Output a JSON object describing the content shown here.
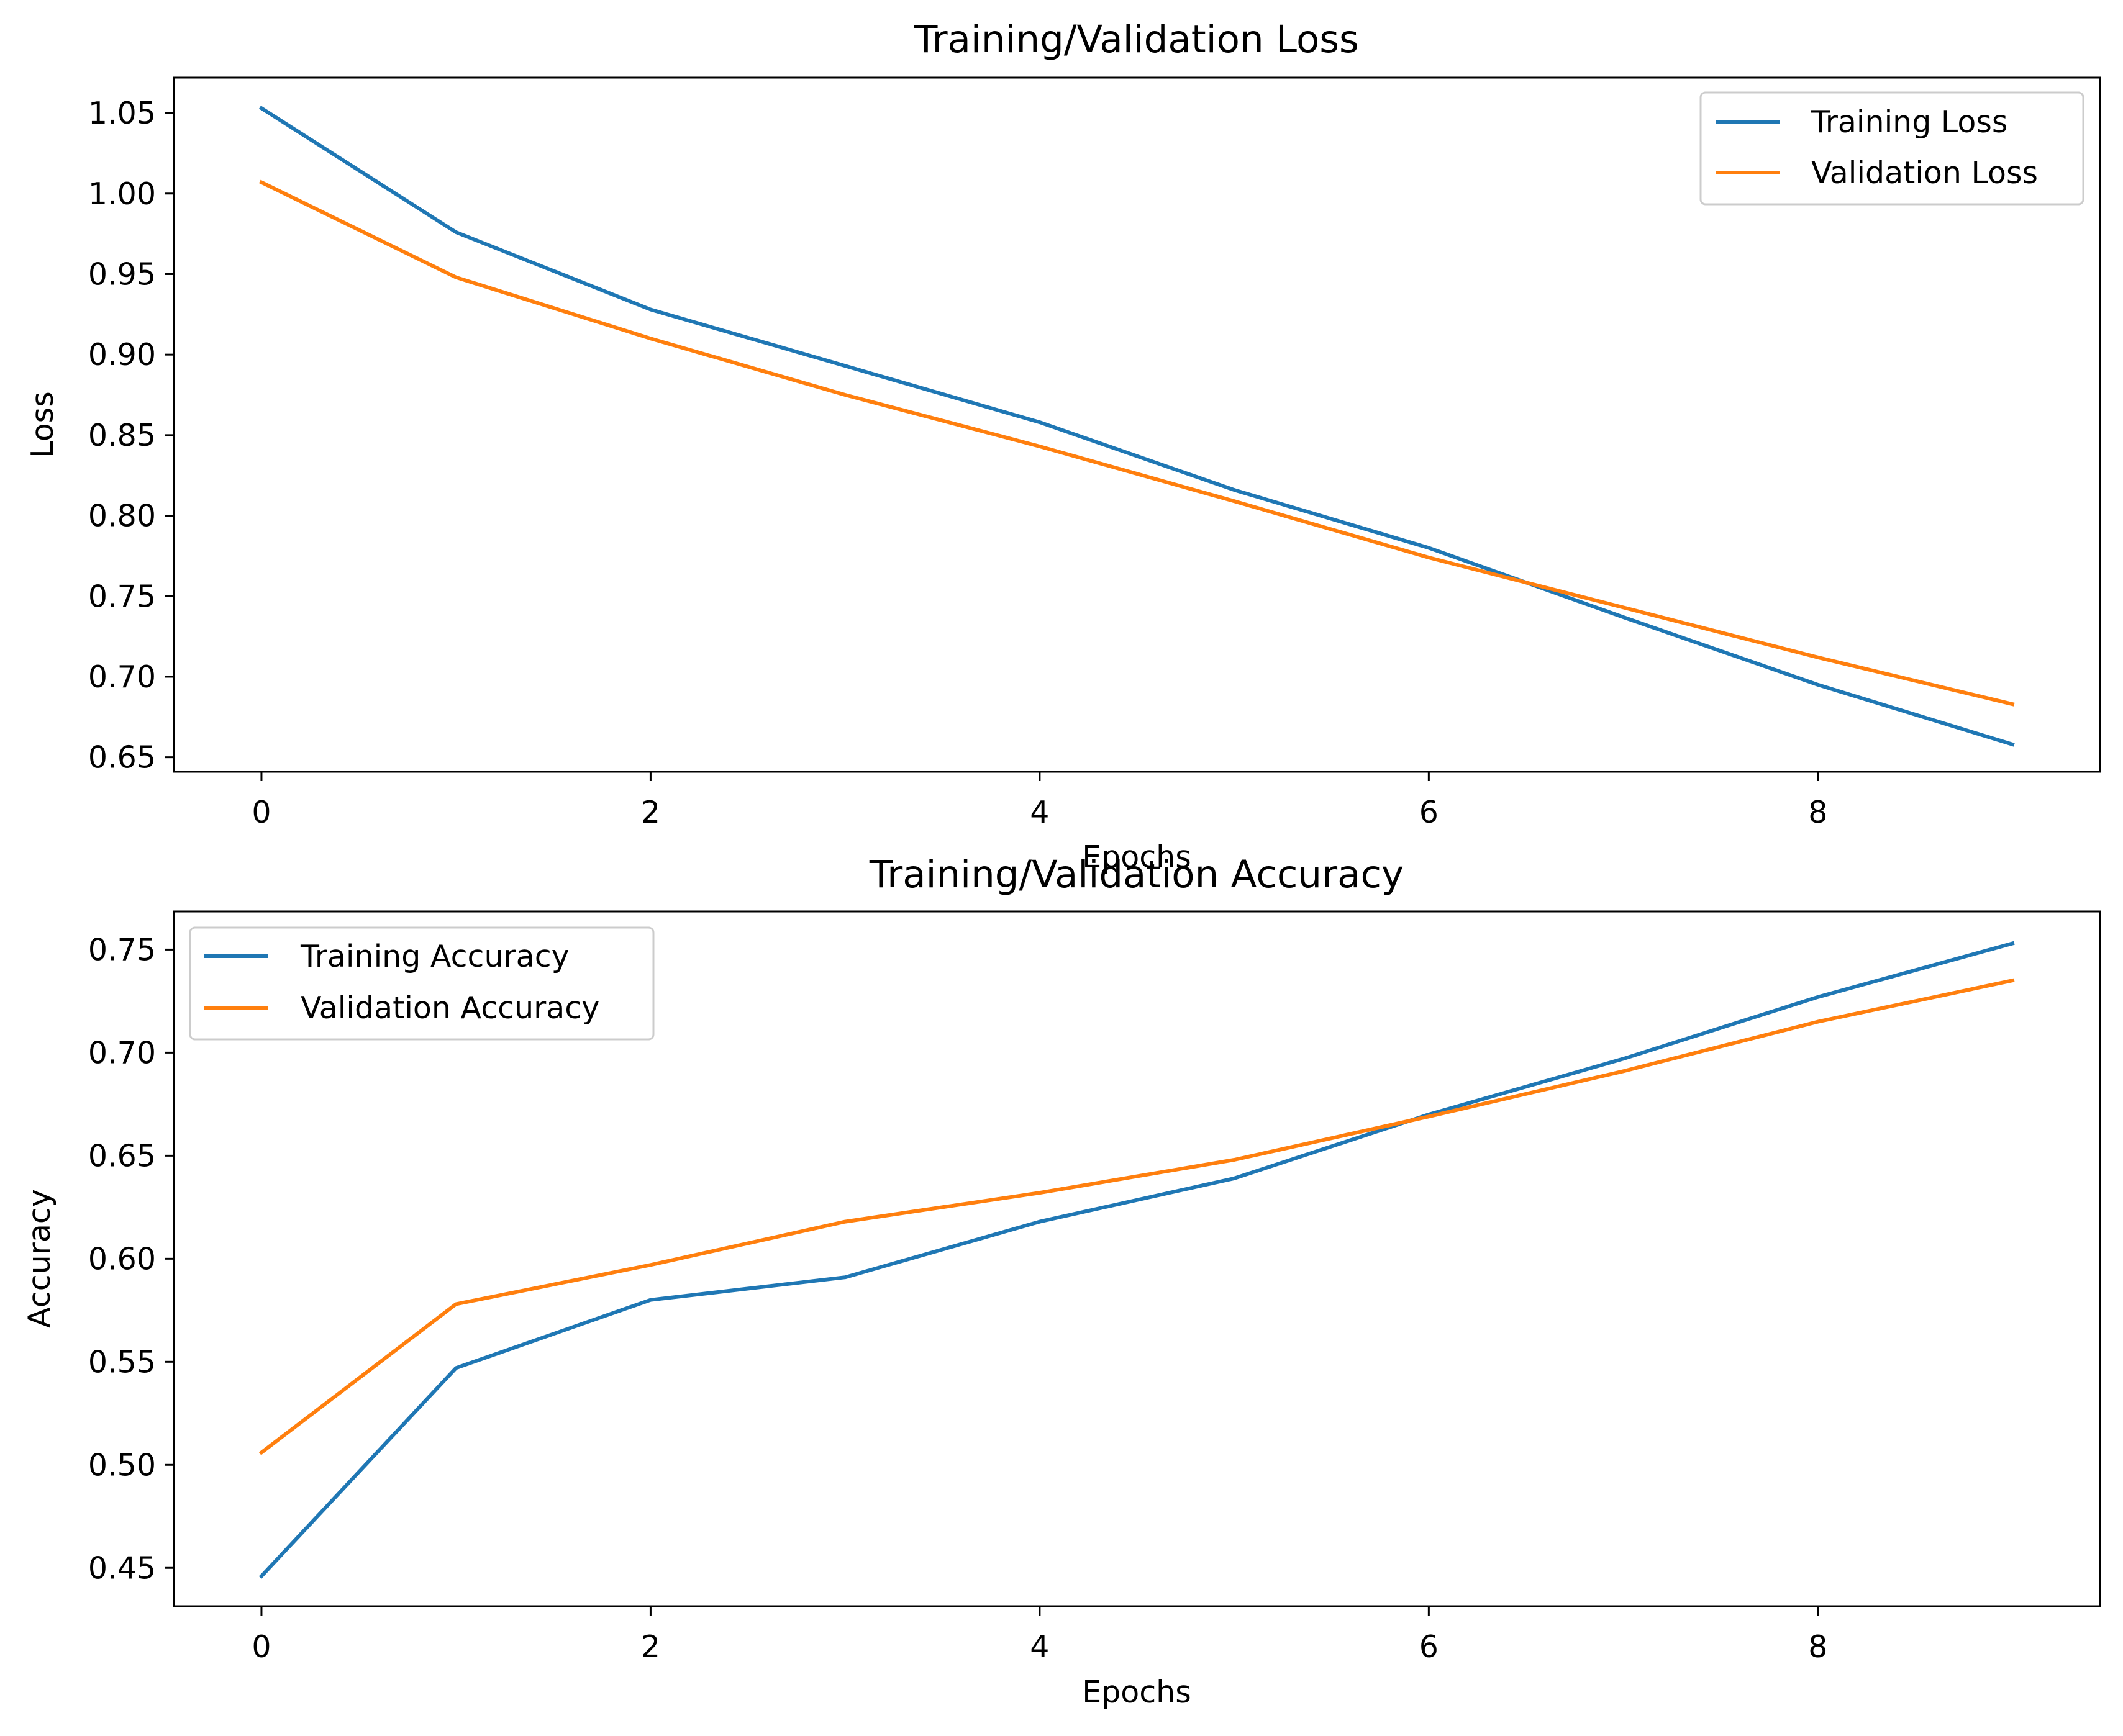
{
  "colors": {
    "series_1": "#1f77b4",
    "series_2": "#ff7f0e",
    "axes": "#000000",
    "legend_border": "#cccccc",
    "background": "#ffffff"
  },
  "chart_data": [
    {
      "type": "line",
      "title": "Training/Validation Loss",
      "xlabel": "Epochs",
      "ylabel": "Loss",
      "x": [
        0,
        1,
        2,
        3,
        4,
        5,
        6,
        7,
        8,
        9
      ],
      "xlim": [
        -0.45,
        9.45
      ],
      "ylim": [
        0.641,
        1.072
      ],
      "xticks": [
        0,
        2,
        4,
        6,
        8
      ],
      "xtick_labels": [
        "0",
        "2",
        "4",
        "6",
        "8"
      ],
      "yticks": [
        0.65,
        0.7,
        0.75,
        0.8,
        0.85,
        0.9,
        0.95,
        1.0,
        1.05
      ],
      "ytick_labels": [
        "0.65",
        "0.70",
        "0.75",
        "0.80",
        "0.85",
        "0.90",
        "0.95",
        "1.00",
        "1.05"
      ],
      "grid": false,
      "legend_position": "upper right",
      "series": [
        {
          "name": "Training Loss",
          "values": [
            1.053,
            0.976,
            0.928,
            0.893,
            0.858,
            0.816,
            0.78,
            0.737,
            0.695,
            0.658
          ]
        },
        {
          "name": "Validation Loss",
          "values": [
            1.007,
            0.948,
            0.91,
            0.875,
            0.843,
            0.809,
            0.774,
            0.743,
            0.712,
            0.683
          ]
        }
      ]
    },
    {
      "type": "line",
      "title": "Training/Validation Accuracy",
      "xlabel": "Epochs",
      "ylabel": "Accuracy",
      "x": [
        0,
        1,
        2,
        3,
        4,
        5,
        6,
        7,
        8,
        9
      ],
      "xlim": [
        -0.45,
        9.45
      ],
      "ylim": [
        0.4314,
        0.7685
      ],
      "xticks": [
        0,
        2,
        4,
        6,
        8
      ],
      "xtick_labels": [
        "0",
        "2",
        "4",
        "6",
        "8"
      ],
      "yticks": [
        0.45,
        0.5,
        0.55,
        0.6,
        0.65,
        0.7,
        0.75
      ],
      "ytick_labels": [
        "0.45",
        "0.50",
        "0.55",
        "0.60",
        "0.65",
        "0.70",
        "0.75"
      ],
      "grid": false,
      "legend_position": "upper left",
      "series": [
        {
          "name": "Training Accuracy",
          "values": [
            0.446,
            0.547,
            0.58,
            0.591,
            0.618,
            0.639,
            0.67,
            0.697,
            0.727,
            0.753
          ]
        },
        {
          "name": "Validation Accuracy",
          "values": [
            0.506,
            0.578,
            0.597,
            0.618,
            0.632,
            0.648,
            0.669,
            0.691,
            0.715,
            0.735
          ]
        }
      ]
    }
  ]
}
